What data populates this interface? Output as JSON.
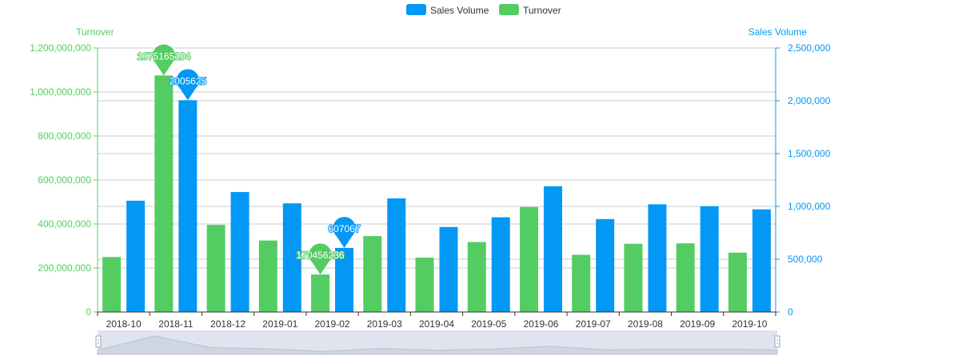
{
  "legend": {
    "items": [
      {
        "label": "Sales Volume",
        "color": "#0398f5"
      },
      {
        "label": "Turnover",
        "color": "#53cd62"
      }
    ]
  },
  "colors": {
    "turnover": "#53cd62",
    "sales": "#0398f5",
    "axis": "#333333",
    "grid": "#cccccc",
    "zoom_fill": "#d8deea",
    "zoom_line": "#b8c2d4"
  },
  "chart_data": {
    "type": "bar",
    "categories": [
      "2018-10",
      "2018-11",
      "2018-12",
      "2019-01",
      "2019-02",
      "2019-03",
      "2019-04",
      "2019-05",
      "2019-06",
      "2019-07",
      "2019-08",
      "2019-09",
      "2019-10"
    ],
    "series": [
      {
        "name": "Turnover",
        "axis": "left",
        "values": [
          250000000,
          1075165104,
          396000000,
          325000000,
          170456236,
          345000000,
          247000000,
          318000000,
          477000000,
          260000000,
          310000000,
          312000000,
          270000000
        ]
      },
      {
        "name": "Sales Volume",
        "axis": "right",
        "values": [
          1054000,
          2005625,
          1136000,
          1029000,
          607067,
          1076000,
          805000,
          897000,
          1191000,
          880000,
          1020000,
          1002000,
          972000
        ]
      }
    ],
    "ylabel_left": "Turnover",
    "ylabel_right": "Sales Volume",
    "ylim_left": [
      0,
      1200000000
    ],
    "ylim_right": [
      0,
      2500000
    ],
    "yticks_left": [
      "0",
      "200,000,000",
      "400,000,000",
      "600,000,000",
      "800,000,000",
      "1,000,000,000",
      "1,200,000,000"
    ],
    "yticks_right": [
      "0",
      "500,000",
      "1,000,000",
      "1,500,000",
      "2,000,000",
      "2,500,000"
    ],
    "markers": [
      {
        "series": "Turnover",
        "category": "2018-11",
        "label": "1075165104"
      },
      {
        "series": "Sales Volume",
        "category": "2018-11",
        "label": "2005625"
      },
      {
        "series": "Turnover",
        "category": "2019-02",
        "label": "170456236"
      },
      {
        "series": "Sales Volume",
        "category": "2019-02",
        "label": "607067"
      }
    ],
    "grid": true,
    "legend_position": "top-center",
    "data_zoom": true
  }
}
